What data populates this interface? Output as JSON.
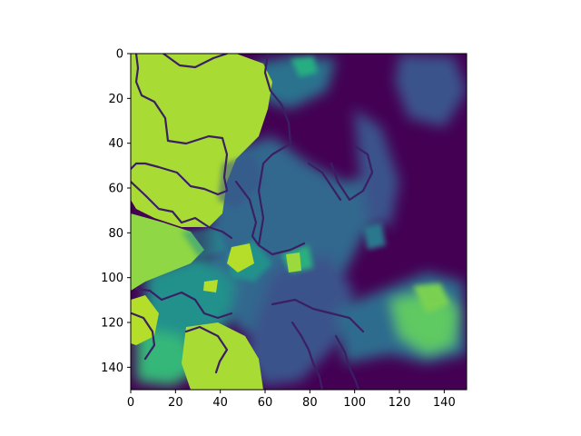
{
  "chart_data": {
    "type": "heatmap",
    "title": "",
    "xlabel": "",
    "ylabel": "",
    "xlim": [
      0,
      150
    ],
    "ylim": [
      150,
      0
    ],
    "x_ticks": [
      0,
      20,
      40,
      60,
      80,
      100,
      120,
      140
    ],
    "y_ticks": [
      0,
      20,
      40,
      60,
      80,
      100,
      120,
      140
    ],
    "grid": false,
    "colormap": "viridis",
    "colors": {
      "low": "#440154",
      "mid_low": "#3b528b",
      "mid": "#21918c",
      "mid_high": "#5ec962",
      "high": "#a8db34",
      "border": "#3b1f63"
    }
  }
}
